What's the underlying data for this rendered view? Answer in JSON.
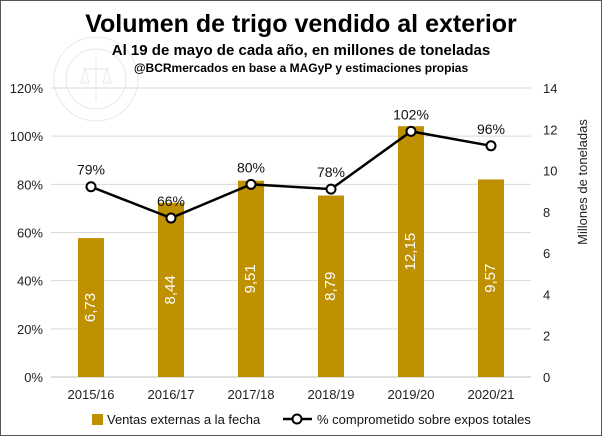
{
  "chart_data": {
    "type": "bar",
    "title": "Volumen de trigo vendido al exterior",
    "subtitle": "Al 19 de mayo de cada año, en millones de toneladas",
    "source_note": "@BCRmercados en base a MAGyP y estimaciones propias",
    "categories": [
      "2015/16",
      "2016/17",
      "2017/18",
      "2018/19",
      "2019/20",
      "2020/21"
    ],
    "series": [
      {
        "name": "Ventas externas a la fecha",
        "type": "bar",
        "axis": "right",
        "color": "#BF9000",
        "values": [
          6.73,
          8.44,
          9.51,
          8.79,
          12.15,
          9.57
        ],
        "labels": [
          "6,73",
          "8,44",
          "9,51",
          "8,79",
          "12,15",
          "9,57"
        ]
      },
      {
        "name": "% comprometido sobre expos totales",
        "type": "line",
        "axis": "left",
        "color": "#000000",
        "values": [
          79,
          66,
          80,
          78,
          102,
          96
        ],
        "labels": [
          "79%",
          "66%",
          "80%",
          "78%",
          "102%",
          "96%"
        ]
      }
    ],
    "y_left": {
      "range": [
        0,
        120
      ],
      "ticks": [
        0,
        20,
        40,
        60,
        80,
        100,
        120
      ],
      "tick_labels": [
        "0%",
        "20%",
        "40%",
        "60%",
        "80%",
        "100%",
        "120%"
      ]
    },
    "y_right": {
      "label": "Millones de toneladas",
      "range": [
        0,
        14
      ],
      "ticks": [
        0,
        2,
        4,
        6,
        8,
        10,
        12,
        14
      ],
      "tick_labels": [
        "0",
        "2",
        "4",
        "6",
        "8",
        "10",
        "12",
        "14"
      ]
    },
    "grid": true,
    "legend_position": "bottom"
  }
}
